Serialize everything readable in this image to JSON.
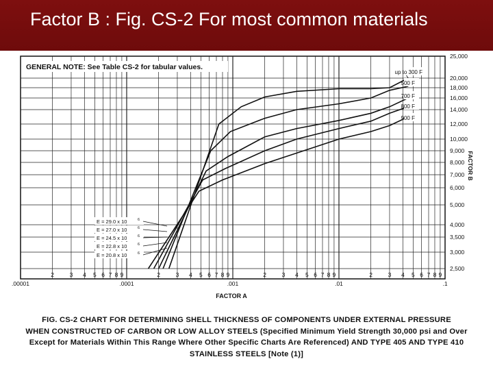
{
  "slide": {
    "title": "Factor B : Fig. CS-2 For most common materials"
  },
  "chart_data": {
    "type": "line",
    "x_scale": "log",
    "xlim": [
      1e-05,
      0.1
    ],
    "xlabel": "FACTOR A",
    "ylabel": "FACTOR B",
    "grid": true,
    "x_tick_labels": [
      {
        "value": 1e-05,
        "label": ".00001"
      },
      {
        "value": 2e-05,
        "label": "2"
      },
      {
        "value": 3e-05,
        "label": "3"
      },
      {
        "value": 4e-05,
        "label": "4"
      },
      {
        "value": 5e-05,
        "label": "5"
      },
      {
        "value": 6e-05,
        "label": "6"
      },
      {
        "value": 7e-05,
        "label": "7"
      },
      {
        "value": 8e-05,
        "label": "8"
      },
      {
        "value": 9e-05,
        "label": "9"
      },
      {
        "value": 0.0001,
        "label": ".0001"
      },
      {
        "value": 0.0002,
        "label": "2"
      },
      {
        "value": 0.0003,
        "label": "3"
      },
      {
        "value": 0.0004,
        "label": "4"
      },
      {
        "value": 0.0005,
        "label": "5"
      },
      {
        "value": 0.0006,
        "label": "6"
      },
      {
        "value": 0.0007,
        "label": "7"
      },
      {
        "value": 0.0008,
        "label": "8"
      },
      {
        "value": 0.0009,
        "label": "9"
      },
      {
        "value": 0.001,
        "label": ".001"
      },
      {
        "value": 0.002,
        "label": "2"
      },
      {
        "value": 0.003,
        "label": "3"
      },
      {
        "value": 0.004,
        "label": "4"
      },
      {
        "value": 0.005,
        "label": "5"
      },
      {
        "value": 0.006,
        "label": "6"
      },
      {
        "value": 0.007,
        "label": "7"
      },
      {
        "value": 0.008,
        "label": "8"
      },
      {
        "value": 0.009,
        "label": "9"
      },
      {
        "value": 0.01,
        "label": ".01"
      },
      {
        "value": 0.02,
        "label": "2"
      },
      {
        "value": 0.03,
        "label": "3"
      },
      {
        "value": 0.04,
        "label": "4"
      },
      {
        "value": 0.05,
        "label": "5"
      },
      {
        "value": 0.06,
        "label": "6"
      },
      {
        "value": 0.07,
        "label": "7"
      },
      {
        "value": 0.08,
        "label": "8"
      },
      {
        "value": 0.09,
        "label": "9"
      },
      {
        "value": 0.1,
        "label": ".1"
      }
    ],
    "y_tick_labels": [
      "25,000",
      "20,000",
      "18,000",
      "16,000",
      "14,000",
      "12,000",
      "10,000",
      "9,000",
      "8,000",
      "7,000",
      "6,000",
      "5,000",
      "4,000",
      "3,500",
      "3,000",
      "2,500"
    ],
    "general_note": "GENERAL NOTE: See Table CS-2 for tabular values.",
    "series": [
      {
        "name": "up to 300 F",
        "points": [
          [
            0.00025,
            2500
          ],
          [
            0.00074,
            12000
          ],
          [
            0.0012,
            14500
          ],
          [
            0.002,
            16200
          ],
          [
            0.004,
            17300
          ],
          [
            0.01,
            17800
          ],
          [
            0.02,
            17800
          ],
          [
            0.03,
            18000
          ],
          [
            0.045,
            20000
          ]
        ]
      },
      {
        "name": "500 F",
        "points": [
          [
            0.00022,
            2500
          ],
          [
            0.00062,
            9000
          ],
          [
            0.00095,
            11000
          ],
          [
            0.002,
            12800
          ],
          [
            0.004,
            14000
          ],
          [
            0.01,
            15000
          ],
          [
            0.02,
            16000
          ],
          [
            0.03,
            17500
          ],
          [
            0.045,
            18300
          ]
        ]
      },
      {
        "name": "700 F",
        "points": [
          [
            0.0002,
            2500
          ],
          [
            0.00056,
            7300
          ],
          [
            0.0009,
            8500
          ],
          [
            0.002,
            10300
          ],
          [
            0.004,
            11400
          ],
          [
            0.01,
            12500
          ],
          [
            0.02,
            13500
          ],
          [
            0.03,
            14500
          ],
          [
            0.045,
            16000
          ]
        ]
      },
      {
        "name": "800 F",
        "points": [
          [
            0.00018,
            2500
          ],
          [
            0.00052,
            6600
          ],
          [
            0.00085,
            7500
          ],
          [
            0.002,
            9000
          ],
          [
            0.004,
            10000
          ],
          [
            0.01,
            11400
          ],
          [
            0.02,
            12400
          ],
          [
            0.03,
            13500
          ],
          [
            0.045,
            14500
          ]
        ]
      },
      {
        "name": "900 F",
        "points": [
          [
            0.00016,
            2500
          ],
          [
            0.00048,
            5800
          ],
          [
            0.0008,
            6600
          ],
          [
            0.002,
            7900
          ],
          [
            0.004,
            8800
          ],
          [
            0.01,
            10000
          ],
          [
            0.02,
            11000
          ],
          [
            0.03,
            11800
          ],
          [
            0.045,
            13000
          ]
        ]
      }
    ],
    "modulus_labels": [
      {
        "text": "E = 29.0 x 10",
        "exponent": "6"
      },
      {
        "text": "E = 27.0 x 10",
        "exponent": "6"
      },
      {
        "text": "E = 24.5 x 10",
        "exponent": "6"
      },
      {
        "text": "E = 22.8 x 10",
        "exponent": "6"
      },
      {
        "text": "E = 20.8 x 10",
        "exponent": "6"
      }
    ]
  },
  "caption": {
    "line1": "FIG. CS-2   CHART FOR DETERMINING SHELL THICKNESS OF COMPONENTS UNDER EXTERNAL PRESSURE",
    "line2": "WHEN CONSTRUCTED OF CARBON OR LOW ALLOY STEELS (Specified Minimum Yield Strength 30,000 psi and Over",
    "line3": "Except for Materials Within This Range Where Other Specific Charts Are Referenced) AND TYPE 405 AND TYPE 410",
    "line4": "STAINLESS STEELS [Note (1)]"
  }
}
